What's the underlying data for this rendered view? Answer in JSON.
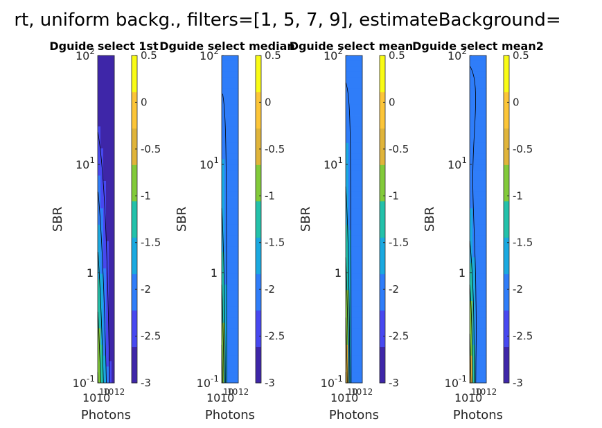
{
  "figure": {
    "title": "rt, uniform backg., filters=[1, 5, 7, 9], estimateBackground="
  },
  "colors": {
    "colormap": [
      "#3e26a8",
      "#4748f0",
      "#2f7df9",
      "#1aa9e0",
      "#23c1aa",
      "#82ca3a",
      "#e0b43a",
      "#fcc538",
      "#f9fb15"
    ],
    "contour_line": "#000000",
    "axis": "#262626"
  },
  "chart_data": [
    {
      "type": "contour",
      "title": "Dguide select 1st",
      "xlabel": "Photons",
      "ylabel": "SBR",
      "x_scale": "log",
      "y_scale": "log",
      "xlim": [
        10,
        1000000000000
      ],
      "ylim": [
        0.1,
        100
      ],
      "x_tick_labels": [
        "10",
        "10",
        "10",
        "10",
        "12"
      ],
      "y_tick_labels": [
        {
          "base": "10",
          "exp": "-1"
        },
        {
          "base": "1",
          "exp": ""
        },
        {
          "base": "10",
          "exp": "1"
        },
        {
          "base": "10",
          "exp": "2"
        }
      ],
      "colorbar": {
        "min": -3,
        "max": 0.5,
        "ticks": [
          "0.5",
          "0",
          "-0.5",
          "-1",
          "-1.5",
          "-2",
          "-2.5",
          "-3"
        ]
      },
      "grid": false
    },
    {
      "type": "contour",
      "title": "Dguide select median",
      "xlabel": "Photons",
      "ylabel": "SBR",
      "x_scale": "log",
      "y_scale": "log",
      "xlim": [
        10,
        1000000000000
      ],
      "ylim": [
        0.1,
        100
      ],
      "x_tick_labels": [
        "10",
        "10",
        "10",
        "10",
        "12"
      ],
      "y_tick_labels": [
        {
          "base": "10",
          "exp": "-1"
        },
        {
          "base": "1",
          "exp": ""
        },
        {
          "base": "10",
          "exp": "1"
        },
        {
          "base": "10",
          "exp": "2"
        }
      ],
      "colorbar": {
        "min": -3,
        "max": 0.5,
        "ticks": [
          "0.5",
          "0",
          "-0.5",
          "-1",
          "-1.5",
          "-2",
          "-2.5",
          "-3"
        ]
      },
      "grid": false
    },
    {
      "type": "contour",
      "title": "Dguide select mean",
      "xlabel": "Photons",
      "ylabel": "SBR",
      "x_scale": "log",
      "y_scale": "log",
      "xlim": [
        10,
        1000000000000
      ],
      "ylim": [
        0.1,
        100
      ],
      "x_tick_labels": [
        "10",
        "10",
        "10",
        "10",
        "12"
      ],
      "y_tick_labels": [
        {
          "base": "10",
          "exp": "-1"
        },
        {
          "base": "1",
          "exp": ""
        },
        {
          "base": "10",
          "exp": "1"
        },
        {
          "base": "10",
          "exp": "2"
        }
      ],
      "colorbar": {
        "min": -3,
        "max": 0.5,
        "ticks": [
          "0.5",
          "0",
          "-0.5",
          "-1",
          "-1.5",
          "-2",
          "-2.5",
          "-3"
        ]
      },
      "grid": false
    },
    {
      "type": "contour",
      "title": "Dguide select mean2",
      "xlabel": "Photons",
      "ylabel": "SBR",
      "x_scale": "log",
      "y_scale": "log",
      "xlim": [
        10,
        1000000000000
      ],
      "ylim": [
        0.1,
        100
      ],
      "x_tick_labels": [
        "10",
        "10",
        "10",
        "10",
        "12"
      ],
      "y_tick_labels": [
        {
          "base": "10",
          "exp": "-1"
        },
        {
          "base": "1",
          "exp": ""
        },
        {
          "base": "10",
          "exp": "1"
        },
        {
          "base": "10",
          "exp": "2"
        }
      ],
      "colorbar": {
        "min": -3,
        "max": 0.5,
        "ticks": [
          "0.5",
          "0",
          "-0.5",
          "-1",
          "-1.5",
          "-2",
          "-2.5",
          "-3"
        ]
      },
      "grid": false
    }
  ]
}
